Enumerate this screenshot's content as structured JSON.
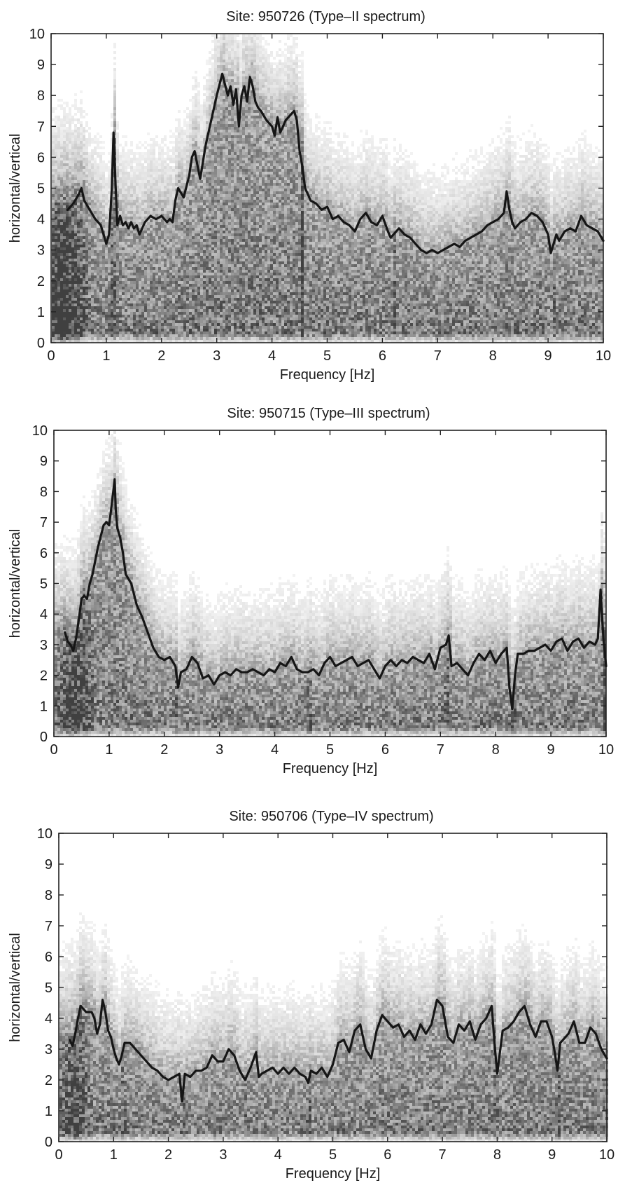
{
  "chart_data": [
    {
      "type": "line",
      "title": "Site: 950726 (Type–II spectrum)",
      "xlabel": "Frequency [Hz]",
      "ylabel": "horizontal/vertical",
      "xlim": [
        0,
        10
      ],
      "ylim": [
        0,
        10
      ],
      "xticks": [
        "0",
        "1",
        "2",
        "3",
        "4",
        "5",
        "6",
        "7",
        "8",
        "9",
        "10"
      ],
      "yticks": [
        "0",
        "1",
        "2",
        "3",
        "4",
        "5",
        "6",
        "7",
        "8",
        "9",
        "10"
      ],
      "background": "grayscale density of individual H/V spectra",
      "series": [
        {
          "x": [
            0.3,
            0.4,
            0.5,
            0.55,
            0.6,
            0.7,
            0.8,
            0.9,
            0.95,
            1.0,
            1.05,
            1.1,
            1.13,
            1.17,
            1.2,
            1.25,
            1.3,
            1.35,
            1.4,
            1.45,
            1.5,
            1.55,
            1.6,
            1.7,
            1.8,
            1.9,
            2.0,
            2.1,
            2.15,
            2.2,
            2.25,
            2.3,
            2.4,
            2.5,
            2.55,
            2.6,
            2.7,
            2.8,
            2.9,
            3.0,
            3.1,
            3.2,
            3.25,
            3.3,
            3.35,
            3.4,
            3.45,
            3.5,
            3.55,
            3.6,
            3.65,
            3.7,
            3.75,
            3.8,
            3.9,
            4.0,
            4.05,
            4.1,
            4.15,
            4.2,
            4.25,
            4.3,
            4.35,
            4.4,
            4.45,
            4.5,
            4.55,
            4.6,
            4.65,
            4.7,
            4.8,
            4.9,
            5.0,
            5.1,
            5.2,
            5.3,
            5.4,
            5.5,
            5.6,
            5.7,
            5.8,
            5.9,
            6.0,
            6.1,
            6.15,
            6.2,
            6.3,
            6.4,
            6.5,
            6.6,
            6.7,
            6.8,
            6.9,
            7.0,
            7.1,
            7.2,
            7.3,
            7.4,
            7.5,
            7.6,
            7.7,
            7.8,
            7.9,
            8.0,
            8.1,
            8.2,
            8.25,
            8.3,
            8.35,
            8.4,
            8.5,
            8.6,
            8.7,
            8.8,
            8.9,
            9.0,
            9.05,
            9.1,
            9.15,
            9.2,
            9.3,
            9.4,
            9.5,
            9.6,
            9.7,
            9.8,
            9.9,
            10.0
          ],
          "y": [
            4.3,
            4.5,
            4.8,
            5.0,
            4.6,
            4.3,
            4.0,
            3.8,
            3.5,
            3.2,
            3.5,
            5.0,
            6.8,
            5.0,
            3.8,
            4.1,
            3.8,
            3.9,
            3.7,
            3.9,
            3.7,
            3.8,
            3.5,
            3.9,
            4.1,
            4.0,
            4.1,
            3.9,
            4.0,
            3.9,
            4.6,
            5.0,
            4.7,
            5.4,
            6.0,
            6.2,
            5.3,
            6.4,
            7.2,
            8.0,
            8.7,
            8.0,
            8.3,
            7.7,
            8.2,
            7.0,
            8.0,
            8.3,
            7.8,
            8.6,
            8.3,
            7.8,
            7.6,
            7.5,
            7.2,
            7.0,
            6.7,
            7.3,
            6.8,
            7.0,
            7.2,
            7.3,
            7.4,
            7.5,
            7.2,
            6.2,
            5.7,
            5.0,
            4.8,
            4.6,
            4.5,
            4.3,
            4.4,
            4.0,
            4.1,
            3.9,
            3.8,
            3.6,
            4.0,
            4.2,
            3.9,
            3.8,
            4.1,
            3.6,
            3.4,
            3.5,
            3.7,
            3.5,
            3.4,
            3.2,
            3.0,
            2.9,
            3.0,
            2.9,
            3.0,
            3.1,
            3.2,
            3.1,
            3.3,
            3.4,
            3.5,
            3.6,
            3.8,
            3.9,
            4.0,
            4.2,
            4.9,
            4.3,
            3.9,
            3.7,
            3.9,
            4.0,
            4.2,
            4.1,
            3.9,
            3.5,
            2.9,
            3.2,
            3.5,
            3.3,
            3.6,
            3.7,
            3.6,
            4.1,
            3.8,
            3.7,
            3.6,
            3.3
          ]
        }
      ],
      "bands": [
        [
          0.2,
          0.5,
          1.6
        ],
        [
          1.1,
          0.04,
          1.0
        ],
        [
          4.52,
          0.04,
          1.4
        ],
        [
          9.1,
          0.04,
          0.6
        ],
        [
          6.2,
          0.04,
          0.5
        ]
      ]
    },
    {
      "type": "line",
      "title": "Site: 950715 (Type–III spectrum)",
      "xlabel": "Frequency [Hz]",
      "ylabel": "horizontal/vertical",
      "xlim": [
        0,
        10
      ],
      "ylim": [
        0,
        10
      ],
      "xticks": [
        "0",
        "1",
        "2",
        "3",
        "4",
        "5",
        "6",
        "7",
        "8",
        "9",
        "10"
      ],
      "yticks": [
        "0",
        "1",
        "2",
        "3",
        "4",
        "5",
        "6",
        "7",
        "8",
        "9",
        "10"
      ],
      "background": "grayscale density of individual H/V spectra",
      "series": [
        {
          "x": [
            0.2,
            0.25,
            0.3,
            0.35,
            0.4,
            0.45,
            0.5,
            0.55,
            0.6,
            0.65,
            0.7,
            0.8,
            0.9,
            0.95,
            1.0,
            1.05,
            1.1,
            1.12,
            1.15,
            1.2,
            1.25,
            1.3,
            1.4,
            1.5,
            1.6,
            1.7,
            1.8,
            1.9,
            2.0,
            2.1,
            2.2,
            2.25,
            2.3,
            2.4,
            2.5,
            2.6,
            2.7,
            2.8,
            2.9,
            3.0,
            3.1,
            3.2,
            3.3,
            3.4,
            3.5,
            3.6,
            3.7,
            3.8,
            3.9,
            4.0,
            4.1,
            4.2,
            4.3,
            4.4,
            4.5,
            4.6,
            4.7,
            4.8,
            4.9,
            5.0,
            5.1,
            5.2,
            5.3,
            5.4,
            5.5,
            5.6,
            5.7,
            5.8,
            5.9,
            6.0,
            6.1,
            6.2,
            6.3,
            6.4,
            6.5,
            6.6,
            6.7,
            6.8,
            6.9,
            7.0,
            7.1,
            7.15,
            7.2,
            7.3,
            7.4,
            7.5,
            7.6,
            7.7,
            7.8,
            7.9,
            8.0,
            8.1,
            8.2,
            8.25,
            8.3,
            8.35,
            8.4,
            8.5,
            8.6,
            8.7,
            8.8,
            8.9,
            9.0,
            9.1,
            9.2,
            9.3,
            9.4,
            9.5,
            9.6,
            9.7,
            9.8,
            9.85,
            9.9,
            9.95,
            10.0
          ],
          "y": [
            3.4,
            3.1,
            3.0,
            2.8,
            3.2,
            3.8,
            4.5,
            4.6,
            4.5,
            5.0,
            5.3,
            6.2,
            6.9,
            7.0,
            6.9,
            7.6,
            8.4,
            7.4,
            6.8,
            6.5,
            6.0,
            5.3,
            5.0,
            4.3,
            3.9,
            3.4,
            2.9,
            2.6,
            2.5,
            2.6,
            2.3,
            1.6,
            2.1,
            2.2,
            2.6,
            2.4,
            1.9,
            2.0,
            1.7,
            2.0,
            2.1,
            2.0,
            2.2,
            2.1,
            2.1,
            2.2,
            2.1,
            2.0,
            2.2,
            2.1,
            2.4,
            2.3,
            2.6,
            2.2,
            2.1,
            2.1,
            2.2,
            2.0,
            2.4,
            2.6,
            2.3,
            2.4,
            2.5,
            2.6,
            2.3,
            2.4,
            2.5,
            2.2,
            1.9,
            2.3,
            2.5,
            2.3,
            2.5,
            2.4,
            2.6,
            2.5,
            2.4,
            2.7,
            2.2,
            2.9,
            3.0,
            3.3,
            2.3,
            2.4,
            2.2,
            2.0,
            2.4,
            2.7,
            2.5,
            2.8,
            2.4,
            2.7,
            2.9,
            1.6,
            0.9,
            2.0,
            2.7,
            2.7,
            2.8,
            2.8,
            2.9,
            3.0,
            2.8,
            3.1,
            3.2,
            2.8,
            3.1,
            3.2,
            2.9,
            3.1,
            3.0,
            3.2,
            4.8,
            3.2,
            2.3
          ]
        }
      ],
      "bands": [
        [
          0.35,
          0.4,
          1.3
        ],
        [
          2.2,
          0.04,
          0.5
        ],
        [
          4.6,
          0.04,
          1.3
        ],
        [
          7.1,
          0.05,
          0.8
        ],
        [
          8.3,
          0.05,
          1.4
        ],
        [
          9.95,
          0.05,
          1.3
        ]
      ]
    },
    {
      "type": "line",
      "title": "Site: 950706 (Type–IV spectrum)",
      "xlabel": "Frequency [Hz]",
      "ylabel": "horizontal/vertical",
      "xlim": [
        0,
        10
      ],
      "ylim": [
        0,
        10
      ],
      "xticks": [
        "0",
        "1",
        "2",
        "3",
        "4",
        "5",
        "6",
        "7",
        "8",
        "9",
        "10"
      ],
      "yticks": [
        "0",
        "1",
        "2",
        "3",
        "4",
        "5",
        "6",
        "7",
        "8",
        "9",
        "10"
      ],
      "background": "grayscale density of individual H/V spectra",
      "series": [
        {
          "x": [
            0.2,
            0.25,
            0.3,
            0.35,
            0.4,
            0.5,
            0.6,
            0.65,
            0.7,
            0.75,
            0.8,
            0.85,
            0.9,
            0.95,
            1.0,
            1.05,
            1.1,
            1.15,
            1.2,
            1.3,
            1.4,
            1.5,
            1.6,
            1.7,
            1.8,
            1.9,
            2.0,
            2.1,
            2.2,
            2.25,
            2.3,
            2.4,
            2.5,
            2.6,
            2.7,
            2.8,
            2.9,
            3.0,
            3.1,
            3.2,
            3.3,
            3.4,
            3.5,
            3.6,
            3.65,
            3.7,
            3.8,
            3.9,
            4.0,
            4.1,
            4.2,
            4.3,
            4.4,
            4.5,
            4.55,
            4.6,
            4.7,
            4.8,
            4.9,
            5.0,
            5.1,
            5.2,
            5.3,
            5.4,
            5.5,
            5.6,
            5.7,
            5.8,
            5.9,
            6.0,
            6.1,
            6.2,
            6.3,
            6.4,
            6.5,
            6.6,
            6.7,
            6.8,
            6.9,
            7.0,
            7.1,
            7.2,
            7.3,
            7.4,
            7.5,
            7.6,
            7.7,
            7.8,
            7.9,
            7.95,
            8.0,
            8.1,
            8.2,
            8.3,
            8.4,
            8.5,
            8.6,
            8.7,
            8.8,
            8.9,
            9.0,
            9.05,
            9.1,
            9.15,
            9.2,
            9.3,
            9.4,
            9.5,
            9.6,
            9.7,
            9.8,
            9.9,
            10.0
          ],
          "y": [
            3.3,
            3.1,
            3.5,
            4.0,
            4.4,
            4.2,
            4.2,
            4.0,
            3.5,
            3.8,
            4.6,
            4.2,
            3.6,
            3.4,
            3.0,
            2.7,
            2.5,
            2.8,
            3.2,
            3.2,
            3.0,
            2.8,
            2.6,
            2.4,
            2.3,
            2.1,
            2.0,
            2.1,
            2.2,
            1.3,
            2.2,
            2.1,
            2.3,
            2.3,
            2.4,
            2.8,
            2.6,
            2.6,
            3.0,
            2.8,
            2.3,
            2.0,
            2.4,
            2.9,
            2.1,
            2.2,
            2.3,
            2.4,
            2.2,
            2.4,
            2.2,
            2.4,
            2.2,
            2.1,
            1.9,
            2.3,
            2.2,
            2.4,
            2.1,
            2.5,
            3.2,
            3.3,
            2.9,
            3.6,
            3.8,
            3.0,
            2.7,
            3.6,
            4.1,
            3.9,
            3.7,
            3.8,
            3.4,
            3.6,
            3.3,
            3.8,
            3.5,
            3.8,
            4.6,
            4.4,
            3.4,
            3.2,
            3.8,
            3.6,
            3.9,
            3.3,
            3.8,
            4.0,
            4.4,
            3.2,
            2.2,
            3.6,
            3.7,
            3.9,
            4.2,
            4.4,
            3.8,
            3.4,
            3.9,
            3.9,
            3.4,
            2.9,
            2.3,
            3.2,
            3.3,
            3.5,
            3.9,
            3.2,
            3.2,
            3.7,
            3.5,
            3.0,
            2.7
          ]
        }
      ],
      "bands": [
        [
          0.25,
          0.35,
          1.0
        ],
        [
          1.15,
          0.05,
          0.6
        ],
        [
          2.25,
          0.05,
          0.6
        ],
        [
          3.4,
          0.05,
          0.5
        ],
        [
          4.55,
          0.05,
          1.0
        ],
        [
          7.95,
          0.05,
          0.6
        ],
        [
          9.1,
          0.05,
          0.7
        ]
      ]
    }
  ]
}
